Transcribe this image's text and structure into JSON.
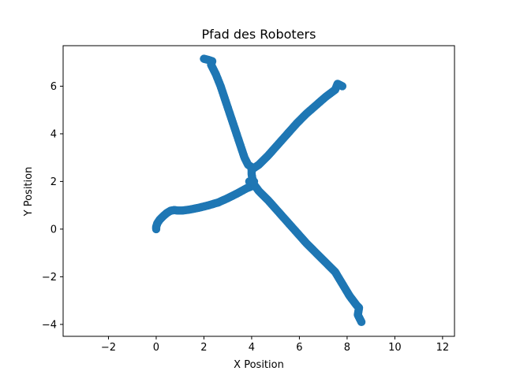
{
  "chart_data": {
    "type": "scatter",
    "title": "Pfad des Roboters",
    "xlabel": "X Position",
    "ylabel": "Y Position",
    "xlim": [
      -3.9,
      12.5
    ],
    "ylim": [
      -4.5,
      7.7
    ],
    "xticks": [
      -2,
      0,
      2,
      4,
      6,
      8,
      10,
      12
    ],
    "yticks": [
      -4,
      -2,
      0,
      2,
      4,
      6
    ],
    "grid": false,
    "legend": "none",
    "marker_color": "#1f77b4",
    "series": [
      {
        "points": [
          [
            0.0,
            0.0
          ],
          [
            0.0,
            0.1
          ],
          [
            0.05,
            0.25
          ],
          [
            0.15,
            0.4
          ],
          [
            0.3,
            0.55
          ],
          [
            0.45,
            0.68
          ],
          [
            0.6,
            0.77
          ],
          [
            0.75,
            0.8
          ],
          [
            0.9,
            0.78
          ],
          [
            1.1,
            0.78
          ],
          [
            1.4,
            0.82
          ],
          [
            1.8,
            0.9
          ],
          [
            2.2,
            1.0
          ],
          [
            2.6,
            1.12
          ],
          [
            3.0,
            1.3
          ],
          [
            3.4,
            1.5
          ],
          [
            3.8,
            1.72
          ],
          [
            4.0,
            1.8
          ],
          [
            3.9,
            2.0
          ],
          [
            4.0,
            2.0
          ],
          [
            4.1,
            2.0
          ]
        ]
      },
      {
        "points": [
          [
            4.0,
            2.0
          ],
          [
            4.3,
            1.6
          ],
          [
            4.7,
            1.2
          ],
          [
            5.1,
            0.75
          ],
          [
            5.5,
            0.3
          ],
          [
            5.9,
            -0.15
          ],
          [
            6.3,
            -0.6
          ],
          [
            6.7,
            -1.0
          ],
          [
            7.1,
            -1.4
          ],
          [
            7.5,
            -1.8
          ],
          [
            7.8,
            -2.3
          ],
          [
            8.1,
            -2.8
          ],
          [
            8.4,
            -3.2
          ],
          [
            8.5,
            -3.3
          ],
          [
            8.45,
            -3.6
          ],
          [
            8.6,
            -3.9
          ]
        ]
      },
      {
        "points": [
          [
            2.0,
            7.15
          ],
          [
            2.2,
            7.1
          ],
          [
            2.35,
            7.05
          ],
          [
            2.3,
            6.9
          ],
          [
            2.5,
            6.5
          ],
          [
            2.7,
            6.0
          ],
          [
            2.9,
            5.4
          ],
          [
            3.1,
            4.8
          ],
          [
            3.3,
            4.2
          ],
          [
            3.5,
            3.6
          ],
          [
            3.7,
            3.0
          ],
          [
            3.85,
            2.7
          ],
          [
            4.0,
            2.6
          ],
          [
            4.0,
            2.3
          ],
          [
            4.05,
            2.0
          ]
        ]
      },
      {
        "points": [
          [
            4.0,
            2.5
          ],
          [
            4.3,
            2.7
          ],
          [
            4.7,
            3.1
          ],
          [
            5.1,
            3.55
          ],
          [
            5.5,
            4.0
          ],
          [
            5.9,
            4.45
          ],
          [
            6.3,
            4.85
          ],
          [
            6.7,
            5.2
          ],
          [
            7.1,
            5.55
          ],
          [
            7.5,
            5.85
          ],
          [
            7.6,
            6.1
          ],
          [
            7.8,
            6.0
          ]
        ]
      }
    ]
  }
}
